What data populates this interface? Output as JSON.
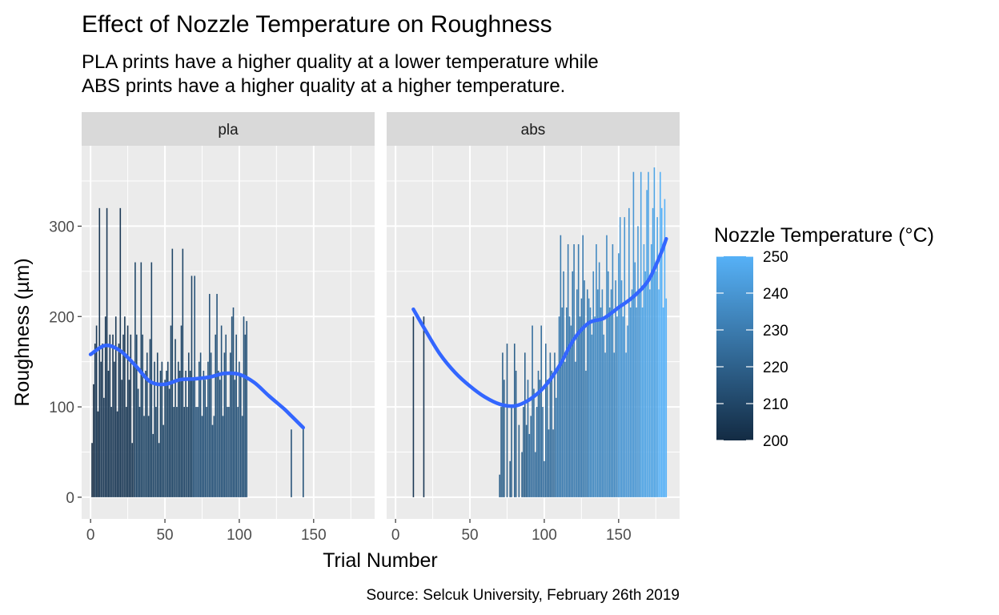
{
  "chart_data": {
    "type": "bar",
    "title": "Effect of Nozzle Temperature on Roughness",
    "subtitle_lines": [
      "PLA prints have a higher quality at a lower temperature while",
      "ABS prints have a higher quality at a higher temperature."
    ],
    "xlabel": "Trial Number",
    "ylabel": "Roughness (µm)",
    "caption": "Source: Selcuk University, February 26th 2019",
    "xlim": [
      -6,
      191
    ],
    "ylim": [
      -24,
      389
    ],
    "x_ticks": [
      0,
      50,
      100,
      150
    ],
    "y_ticks": [
      0,
      100,
      200,
      300
    ],
    "grid": true,
    "legend": {
      "title": "Nozzle Temperature (°C)",
      "position": "right",
      "type": "colorbar",
      "range": [
        200,
        250
      ],
      "ticks": [
        200,
        210,
        220,
        230,
        240,
        250
      ],
      "color_low": "#132B43",
      "color_high": "#56B1F7"
    },
    "smooth_color": "#3366FF",
    "panels": [
      {
        "name": "pla",
        "bars": [
          [
            1,
            60,
            200
          ],
          [
            2,
            125,
            200
          ],
          [
            3,
            170,
            205
          ],
          [
            4,
            190,
            205
          ],
          [
            5,
            95,
            200
          ],
          [
            6,
            320,
            205
          ],
          [
            7,
            150,
            205
          ],
          [
            8,
            170,
            205
          ],
          [
            9,
            110,
            205
          ],
          [
            10,
            200,
            205
          ],
          [
            11,
            320,
            205
          ],
          [
            12,
            140,
            205
          ],
          [
            13,
            180,
            205
          ],
          [
            14,
            100,
            205
          ],
          [
            15,
            180,
            205
          ],
          [
            16,
            150,
            205
          ],
          [
            17,
            200,
            205
          ],
          [
            18,
            95,
            205
          ],
          [
            19,
            170,
            205
          ],
          [
            20,
            320,
            205
          ],
          [
            21,
            130,
            205
          ],
          [
            22,
            180,
            205
          ],
          [
            23,
            200,
            205
          ],
          [
            24,
            100,
            205
          ],
          [
            25,
            190,
            205
          ],
          [
            26,
            130,
            205
          ],
          [
            27,
            180,
            205
          ],
          [
            28,
            60,
            205
          ],
          [
            29,
            150,
            205
          ],
          [
            30,
            260,
            210
          ],
          [
            31,
            180,
            210
          ],
          [
            32,
            120,
            210
          ],
          [
            33,
            100,
            210
          ],
          [
            34,
            260,
            210
          ],
          [
            35,
            180,
            210
          ],
          [
            36,
            90,
            210
          ],
          [
            37,
            140,
            210
          ],
          [
            38,
            160,
            210
          ],
          [
            39,
            90,
            210
          ],
          [
            40,
            175,
            210
          ],
          [
            41,
            260,
            210
          ],
          [
            42,
            70,
            210
          ],
          [
            43,
            150,
            210
          ],
          [
            44,
            100,
            210
          ],
          [
            45,
            160,
            210
          ],
          [
            46,
            60,
            210
          ],
          [
            47,
            140,
            210
          ],
          [
            48,
            150,
            210
          ],
          [
            49,
            80,
            210
          ],
          [
            50,
            130,
            210
          ],
          [
            51,
            140,
            210
          ],
          [
            52,
            150,
            210
          ],
          [
            53,
            120,
            210
          ],
          [
            54,
            190,
            210
          ],
          [
            55,
            275,
            210
          ],
          [
            56,
            100,
            210
          ],
          [
            57,
            175,
            210
          ],
          [
            58,
            100,
            210
          ],
          [
            59,
            150,
            210
          ],
          [
            60,
            140,
            210
          ],
          [
            61,
            190,
            210
          ],
          [
            62,
            275,
            210
          ],
          [
            63,
            100,
            210
          ],
          [
            64,
            140,
            210
          ],
          [
            65,
            100,
            210
          ],
          [
            66,
            160,
            210
          ],
          [
            67,
            140,
            210
          ],
          [
            68,
            245,
            210
          ],
          [
            69,
            130,
            215
          ],
          [
            70,
            245,
            215
          ],
          [
            71,
            100,
            215
          ],
          [
            72,
            100,
            215
          ],
          [
            73,
            150,
            215
          ],
          [
            74,
            160,
            215
          ],
          [
            75,
            90,
            215
          ],
          [
            76,
            140,
            215
          ],
          [
            77,
            130,
            215
          ],
          [
            78,
            100,
            215
          ],
          [
            79,
            150,
            215
          ],
          [
            80,
            225,
            215
          ],
          [
            81,
            160,
            215
          ],
          [
            82,
            80,
            215
          ],
          [
            83,
            90,
            215
          ],
          [
            84,
            180,
            215
          ],
          [
            85,
            225,
            215
          ],
          [
            86,
            140,
            215
          ],
          [
            87,
            130,
            215
          ],
          [
            88,
            190,
            215
          ],
          [
            89,
            90,
            215
          ],
          [
            90,
            160,
            215
          ],
          [
            91,
            180,
            215
          ],
          [
            92,
            100,
            215
          ],
          [
            93,
            100,
            215
          ],
          [
            94,
            160,
            215
          ],
          [
            95,
            200,
            215
          ],
          [
            96,
            210,
            215
          ],
          [
            97,
            130,
            215
          ],
          [
            98,
            180,
            215
          ],
          [
            99,
            100,
            215
          ],
          [
            100,
            150,
            215
          ],
          [
            101,
            135,
            215
          ],
          [
            102,
            90,
            215
          ],
          [
            103,
            200,
            215
          ],
          [
            104,
            180,
            215
          ],
          [
            105,
            195,
            215
          ],
          [
            135,
            75,
            215
          ],
          [
            143,
            78,
            215
          ]
        ],
        "smooth": [
          [
            0,
            158
          ],
          [
            10,
            168
          ],
          [
            20,
            162
          ],
          [
            30,
            146
          ],
          [
            40,
            128
          ],
          [
            50,
            125
          ],
          [
            60,
            130
          ],
          [
            70,
            131
          ],
          [
            80,
            133
          ],
          [
            90,
            137
          ],
          [
            100,
            136
          ],
          [
            110,
            127
          ],
          [
            120,
            112
          ],
          [
            130,
            98
          ],
          [
            135,
            90
          ],
          [
            143,
            77
          ]
        ]
      },
      {
        "name": "abs",
        "bars": [
          [
            12,
            200,
            205
          ],
          [
            19,
            200,
            205
          ],
          [
            70,
            25,
            220
          ],
          [
            71,
            100,
            220
          ],
          [
            72,
            160,
            220
          ],
          [
            73,
            130,
            220
          ],
          [
            75,
            170,
            220
          ],
          [
            77,
            40,
            220
          ],
          [
            78,
            100,
            220
          ],
          [
            80,
            170,
            220
          ],
          [
            81,
            140,
            220
          ],
          [
            83,
            80,
            220
          ],
          [
            85,
            50,
            220
          ],
          [
            86,
            100,
            220
          ],
          [
            87,
            160,
            220
          ],
          [
            88,
            80,
            220
          ],
          [
            89,
            130,
            225
          ],
          [
            90,
            70,
            225
          ],
          [
            91,
            90,
            225
          ],
          [
            92,
            190,
            225
          ],
          [
            93,
            120,
            225
          ],
          [
            94,
            50,
            225
          ],
          [
            95,
            100,
            225
          ],
          [
            96,
            140,
            225
          ],
          [
            97,
            130,
            225
          ],
          [
            98,
            190,
            225
          ],
          [
            99,
            100,
            225
          ],
          [
            100,
            40,
            225
          ],
          [
            101,
            170,
            225
          ],
          [
            102,
            130,
            225
          ],
          [
            103,
            75,
            225
          ],
          [
            104,
            160,
            225
          ],
          [
            105,
            140,
            225
          ],
          [
            106,
            75,
            225
          ],
          [
            107,
            160,
            225
          ],
          [
            108,
            110,
            230
          ],
          [
            109,
            140,
            230
          ],
          [
            110,
            200,
            230
          ],
          [
            111,
            290,
            230
          ],
          [
            112,
            210,
            230
          ],
          [
            113,
            250,
            230
          ],
          [
            114,
            150,
            230
          ],
          [
            115,
            210,
            230
          ],
          [
            116,
            280,
            230
          ],
          [
            117,
            200,
            230
          ],
          [
            118,
            190,
            230
          ],
          [
            119,
            250,
            230
          ],
          [
            120,
            280,
            230
          ],
          [
            121,
            150,
            230
          ],
          [
            122,
            230,
            230
          ],
          [
            123,
            280,
            230
          ],
          [
            124,
            200,
            230
          ],
          [
            125,
            220,
            230
          ],
          [
            126,
            290,
            230
          ],
          [
            127,
            240,
            230
          ],
          [
            128,
            140,
            230
          ],
          [
            129,
            230,
            230
          ],
          [
            130,
            220,
            235
          ],
          [
            131,
            210,
            235
          ],
          [
            132,
            180,
            235
          ],
          [
            133,
            250,
            235
          ],
          [
            134,
            200,
            235
          ],
          [
            135,
            280,
            235
          ],
          [
            136,
            230,
            235
          ],
          [
            137,
            260,
            235
          ],
          [
            138,
            210,
            235
          ],
          [
            139,
            230,
            235
          ],
          [
            140,
            180,
            235
          ],
          [
            141,
            160,
            235
          ],
          [
            142,
            290,
            235
          ],
          [
            143,
            250,
            235
          ],
          [
            144,
            210,
            235
          ],
          [
            145,
            230,
            235
          ],
          [
            146,
            280,
            235
          ],
          [
            147,
            160,
            235
          ],
          [
            148,
            240,
            235
          ],
          [
            149,
            200,
            235
          ],
          [
            150,
            270,
            240
          ],
          [
            151,
            310,
            240
          ],
          [
            152,
            240,
            240
          ],
          [
            153,
            200,
            240
          ],
          [
            154,
            310,
            240
          ],
          [
            155,
            160,
            240
          ],
          [
            156,
            190,
            240
          ],
          [
            157,
            320,
            240
          ],
          [
            158,
            210,
            240
          ],
          [
            159,
            230,
            240
          ],
          [
            160,
            360,
            240
          ],
          [
            161,
            260,
            240
          ],
          [
            162,
            210,
            240
          ],
          [
            163,
            300,
            240
          ],
          [
            164,
            230,
            240
          ],
          [
            165,
            360,
            245
          ],
          [
            166,
            210,
            245
          ],
          [
            167,
            280,
            245
          ],
          [
            168,
            250,
            245
          ],
          [
            169,
            340,
            245
          ],
          [
            170,
            360,
            245
          ],
          [
            171,
            230,
            245
          ],
          [
            172,
            280,
            245
          ],
          [
            173,
            320,
            245
          ],
          [
            174,
            365,
            245
          ],
          [
            175,
            250,
            245
          ],
          [
            176,
            310,
            245
          ],
          [
            177,
            230,
            250
          ],
          [
            178,
            360,
            250
          ],
          [
            179,
            320,
            250
          ],
          [
            180,
            210,
            250
          ],
          [
            181,
            330,
            250
          ],
          [
            182,
            220,
            250
          ]
        ],
        "smooth": [
          [
            12,
            208
          ],
          [
            20,
            185
          ],
          [
            30,
            158
          ],
          [
            40,
            138
          ],
          [
            50,
            123
          ],
          [
            60,
            111
          ],
          [
            70,
            103
          ],
          [
            80,
            101
          ],
          [
            90,
            108
          ],
          [
            100,
            122
          ],
          [
            110,
            145
          ],
          [
            120,
            175
          ],
          [
            130,
            193
          ],
          [
            140,
            198
          ],
          [
            150,
            210
          ],
          [
            160,
            222
          ],
          [
            170,
            240
          ],
          [
            178,
            268
          ],
          [
            182,
            286
          ]
        ]
      }
    ]
  }
}
